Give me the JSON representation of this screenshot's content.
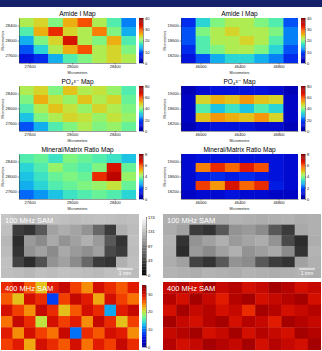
{
  "chart_data": [
    {
      "type": "heatmap",
      "title": "Amide I Map",
      "x_label": "Micrometers",
      "y_label": "Micrometers",
      "xlim": [
        27500,
        28600
      ],
      "ylim": [
        27400,
        28600
      ],
      "xticks": [
        27600,
        28000,
        28400
      ],
      "yticks": [
        27600,
        28000,
        28400
      ],
      "color": "jet",
      "color_range": [
        0,
        40
      ],
      "color_ticks": [
        0,
        10,
        20,
        30,
        40
      ],
      "cells": [
        [
          22,
          24,
          20,
          26,
          30,
          22,
          18,
          12
        ],
        [
          18,
          26,
          32,
          24,
          22,
          28,
          20,
          14
        ],
        [
          14,
          20,
          24,
          34,
          22,
          20,
          26,
          18
        ],
        [
          10,
          16,
          22,
          26,
          30,
          22,
          24,
          20
        ],
        [
          6,
          8,
          14,
          18,
          20,
          22,
          24,
          22
        ]
      ]
    },
    {
      "type": "heatmap",
      "title": "Amide I Map",
      "x_label": "Micrometers",
      "y_label": "Micrometers",
      "xlim": [
        45800,
        47000
      ],
      "ylim": [
        18000,
        19200
      ],
      "xticks": [
        46000,
        46400,
        46800
      ],
      "yticks": [
        18200,
        18600,
        19000
      ],
      "color": "jet",
      "color_range": [
        0,
        40
      ],
      "color_ticks": [
        0,
        10,
        20,
        30,
        40
      ],
      "cells": [
        [
          8,
          16,
          20,
          22,
          22,
          20,
          18,
          10
        ],
        [
          10,
          20,
          22,
          24,
          22,
          22,
          20,
          12
        ],
        [
          10,
          18,
          22,
          22,
          24,
          22,
          18,
          12
        ],
        [
          8,
          18,
          20,
          22,
          22,
          20,
          16,
          10
        ],
        [
          6,
          10,
          14,
          16,
          16,
          14,
          12,
          8
        ]
      ]
    },
    {
      "type": "heatmap",
      "title": "PO₄³⁻ Map",
      "x_label": "Micrometers",
      "y_label": "Micrometers",
      "xlim": [
        27500,
        28600
      ],
      "ylim": [
        27400,
        28600
      ],
      "xticks": [
        27600,
        28000,
        28400
      ],
      "yticks": [
        27600,
        28000,
        28400
      ],
      "color": "jet",
      "color_range": [
        0,
        80
      ],
      "color_ticks": [
        0,
        20,
        40,
        60,
        80
      ],
      "cells": [
        [
          44,
          48,
          40,
          50,
          44,
          46,
          42,
          36
        ],
        [
          40,
          52,
          46,
          42,
          50,
          44,
          48,
          38
        ],
        [
          36,
          44,
          50,
          46,
          42,
          48,
          44,
          40
        ],
        [
          30,
          40,
          44,
          48,
          46,
          42,
          46,
          42
        ],
        [
          20,
          28,
          36,
          40,
          44,
          40,
          42,
          38
        ]
      ]
    },
    {
      "type": "heatmap",
      "title": "PO₄³⁻ Map",
      "x_label": "Micrometers",
      "y_label": "Micrometers",
      "xlim": [
        45800,
        47000
      ],
      "ylim": [
        18000,
        19200
      ],
      "xticks": [
        46000,
        46400,
        46800
      ],
      "yticks": [
        18200,
        18600,
        19000
      ],
      "color": "jet",
      "color_range": [
        0,
        80
      ],
      "color_ticks": [
        0,
        20,
        40,
        60,
        80
      ],
      "cells": [
        [
          6,
          10,
          12,
          12,
          12,
          12,
          10,
          6
        ],
        [
          8,
          48,
          52,
          50,
          54,
          50,
          48,
          8
        ],
        [
          8,
          36,
          30,
          34,
          30,
          36,
          32,
          8
        ],
        [
          8,
          50,
          54,
          52,
          50,
          54,
          48,
          8
        ],
        [
          6,
          10,
          12,
          12,
          12,
          10,
          10,
          6
        ]
      ]
    },
    {
      "type": "heatmap",
      "title": "Mineral/Matrix Ratio Map",
      "x_label": "Micrometers",
      "y_label": "Micrometers",
      "xlim": [
        27500,
        28600
      ],
      "ylim": [
        27400,
        28600
      ],
      "xticks": [
        27600,
        28000,
        28400
      ],
      "yticks": [
        27600,
        28000,
        28400
      ],
      "color": "jet",
      "color_range": [
        0,
        8
      ],
      "color_ticks": [
        0,
        2,
        4,
        6,
        8
      ],
      "cells": [
        [
          3.6,
          3.8,
          3.4,
          4.0,
          3.8,
          3.6,
          3.4,
          3.0
        ],
        [
          3.2,
          3.6,
          4.2,
          3.8,
          3.6,
          4.0,
          6.8,
          3.8
        ],
        [
          3.0,
          3.4,
          3.8,
          4.0,
          3.8,
          6.4,
          7.2,
          4.2
        ],
        [
          2.8,
          3.2,
          3.6,
          3.8,
          4.0,
          4.2,
          4.6,
          3.8
        ],
        [
          2.2,
          2.6,
          3.0,
          3.4,
          3.6,
          3.8,
          3.6,
          3.2
        ]
      ]
    },
    {
      "type": "heatmap",
      "title": "Mineral/Matrix Ratio Map",
      "x_label": "Micrometers",
      "y_label": "Micrometers",
      "xlim": [
        45800,
        47000
      ],
      "ylim": [
        18000,
        19200
      ],
      "xticks": [
        46000,
        46400,
        46800
      ],
      "yticks": [
        18200,
        18600,
        19000
      ],
      "color": "jet",
      "color_range": [
        0,
        8
      ],
      "color_ticks": [
        0,
        2,
        4,
        6,
        8
      ],
      "cells": [
        [
          1.0,
          1.2,
          1.2,
          1.2,
          1.2,
          1.2,
          1.2,
          1.0
        ],
        [
          1.0,
          5.6,
          6.4,
          5.8,
          6.6,
          6.0,
          1.2,
          1.0
        ],
        [
          1.0,
          1.4,
          1.6,
          1.4,
          1.6,
          1.4,
          1.2,
          1.0
        ],
        [
          1.0,
          6.2,
          5.4,
          6.8,
          5.8,
          6.4,
          1.4,
          1.0
        ],
        [
          0.8,
          1.0,
          1.0,
          1.2,
          1.0,
          1.0,
          0.8,
          0.8
        ]
      ]
    },
    {
      "type": "heatmap",
      "title": "100 MHz SAM",
      "tick_labels": false,
      "annotations": [
        "1 mm"
      ],
      "color": "gray",
      "color_range": [
        0,
        174
      ],
      "color_ticks": [
        0,
        43,
        87,
        131,
        174
      ],
      "cells": [
        [
          135,
          130,
          128,
          130,
          132,
          130,
          128,
          130,
          132,
          130,
          128,
          130
        ],
        [
          130,
          40,
          35,
          60,
          110,
          118,
          112,
          100,
          70,
          40,
          120,
          128
        ],
        [
          125,
          30,
          105,
          95,
          115,
          100,
          110,
          120,
          105,
          60,
          35,
          130
        ],
        [
          128,
          35,
          100,
          110,
          95,
          115,
          105,
          98,
          110,
          50,
          40,
          128
        ],
        [
          132,
          45,
          30,
          55,
          100,
          110,
          95,
          70,
          40,
          35,
          120,
          130
        ],
        [
          130,
          128,
          125,
          130,
          128,
          132,
          130,
          128,
          126,
          130,
          132,
          128
        ]
      ]
    },
    {
      "type": "heatmap",
      "title": "100 MHz SAM",
      "tick_labels": false,
      "annotations": [
        "1 mm"
      ],
      "color": "gray",
      "color_range": [
        0,
        174
      ],
      "cells": [
        [
          120,
          118,
          122,
          120,
          118,
          122,
          120,
          118,
          120,
          122,
          118,
          120
        ],
        [
          118,
          110,
          40,
          35,
          60,
          100,
          105,
          95,
          60,
          40,
          115,
          120
        ],
        [
          122,
          35,
          100,
          110,
          120,
          105,
          112,
          118,
          100,
          50,
          30,
          118
        ],
        [
          120,
          30,
          105,
          95,
          110,
          120,
          100,
          108,
          115,
          95,
          35,
          122
        ],
        [
          118,
          110,
          45,
          35,
          60,
          100,
          95,
          60,
          40,
          35,
          110,
          120
        ],
        [
          122,
          120,
          118,
          122,
          120,
          118,
          122,
          120,
          118,
          120,
          122,
          118
        ]
      ]
    },
    {
      "type": "heatmap",
      "title": "400 MHz SAM",
      "tick_labels": false,
      "color": "jet",
      "color_range": [
        0,
        35
      ],
      "color_ticks": [
        0,
        10,
        20,
        30
      ],
      "cells": [
        [
          28,
          30,
          26,
          22,
          29,
          31,
          27,
          24,
          30,
          28,
          26,
          29
        ],
        [
          26,
          22,
          30,
          28,
          8,
          27,
          31,
          29,
          23,
          30,
          27,
          25
        ],
        [
          30,
          27,
          24,
          31,
          28,
          22,
          26,
          30,
          28,
          12,
          29,
          31
        ],
        [
          25,
          31,
          28,
          20,
          30,
          27,
          29,
          24,
          31,
          28,
          22,
          27
        ],
        [
          29,
          24,
          30,
          27,
          25,
          31,
          10,
          28,
          26,
          30,
          29,
          24
        ],
        [
          27,
          29,
          23,
          30,
          28,
          26,
          30,
          25,
          29,
          27,
          31,
          28
        ]
      ]
    },
    {
      "type": "heatmap",
      "title": "400 MHz SAM",
      "tick_labels": false,
      "color": "jet",
      "color_range": [
        0,
        35
      ],
      "cells": [
        [
          31,
          32,
          30,
          33,
          31,
          32,
          30,
          31,
          33,
          32,
          30,
          31
        ],
        [
          32,
          30,
          33,
          31,
          29,
          32,
          33,
          30,
          31,
          32,
          33,
          30
        ],
        [
          30,
          33,
          31,
          32,
          30,
          31,
          28,
          33,
          32,
          30,
          31,
          32
        ],
        [
          33,
          31,
          30,
          32,
          33,
          30,
          32,
          31,
          29,
          33,
          32,
          31
        ],
        [
          31,
          32,
          33,
          30,
          31,
          33,
          30,
          32,
          31,
          30,
          33,
          32
        ],
        [
          32,
          30,
          31,
          33,
          32,
          31,
          33,
          30,
          32,
          31,
          30,
          33
        ]
      ]
    }
  ]
}
